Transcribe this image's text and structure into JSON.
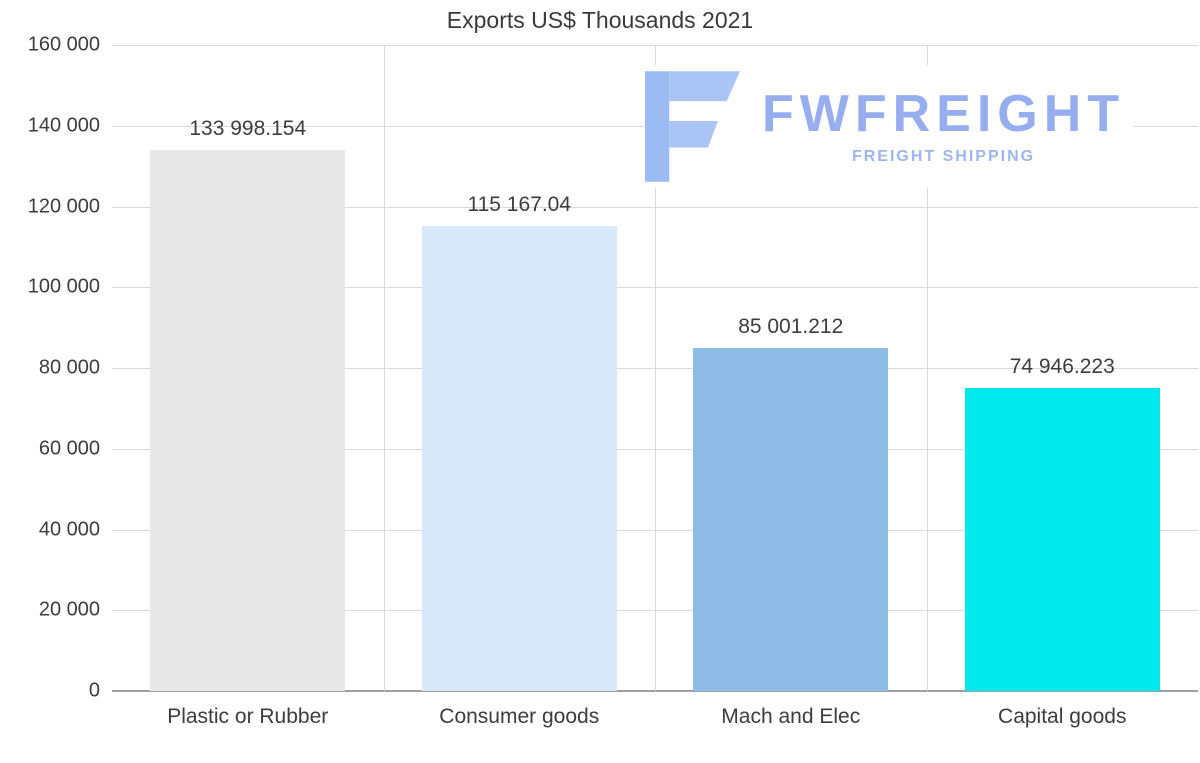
{
  "chart_data": {
    "type": "bar",
    "title": "Exports US$ Thousands 2021",
    "xlabel": "",
    "ylabel": "",
    "categories": [
      "Plastic or Rubber",
      "Consumer goods",
      "Mach and Elec",
      "Capital goods"
    ],
    "values": [
      133998.154,
      115167.04,
      85001.212,
      74946.223
    ],
    "value_labels": [
      "133 998.154",
      "115 167.04",
      "85 001.212",
      "74 946.223"
    ],
    "bar_colors": [
      "#e8e8e8",
      "#d9e9fb",
      "#8fbce6",
      "#00e9ef"
    ],
    "ylim": [
      0,
      160000
    ],
    "y_ticks": [
      {
        "value": 160000,
        "label": "160 000"
      },
      {
        "value": 140000,
        "label": "140 000"
      },
      {
        "value": 120000,
        "label": "120 000"
      },
      {
        "value": 100000,
        "label": "100 000"
      },
      {
        "value": 80000,
        "label": "80 000"
      },
      {
        "value": 60000,
        "label": "60 000"
      },
      {
        "value": 40000,
        "label": "40 000"
      },
      {
        "value": 20000,
        "label": "20 000"
      },
      {
        "value": 0,
        "label": "0"
      }
    ],
    "grid": "horizontal lines at each y tick, vertical lines between category columns",
    "legend": "none"
  },
  "logo": {
    "brand": "FWFREIGHT",
    "tagline": "FREIGHT SHIPPING",
    "icon": "fwfreight-f-icon",
    "brand_color": "#96adf0",
    "icon_color": "#a9c4f5"
  },
  "colors": {
    "background": "#ffffff",
    "gridline": "#d9d9d9",
    "axis_line": "#9f9f9f",
    "text": "#3d3d3d"
  }
}
